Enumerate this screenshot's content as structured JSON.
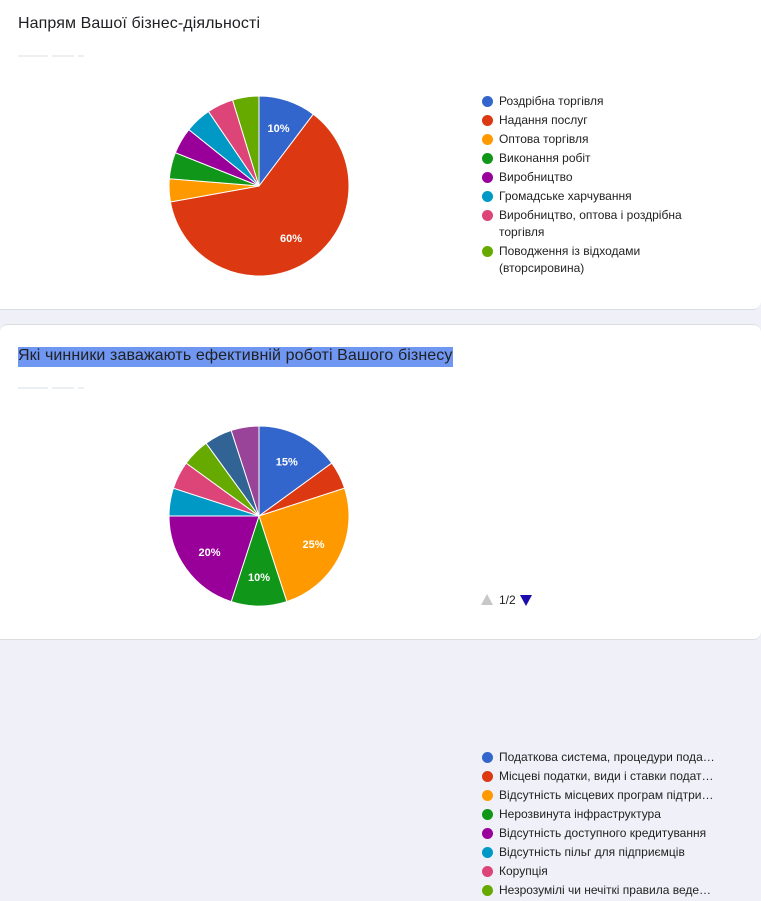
{
  "chart_data": [
    {
      "type": "pie",
      "title": "Напрям Вашої бізнес-діяльності",
      "legend_position": "right",
      "slices": [
        {
          "label": "Роздрібна торгівля",
          "value": 10,
          "color": "#3366cc",
          "value_label": "10%"
        },
        {
          "label": "Надання послуг",
          "value": 60,
          "color": "#dc3912",
          "value_label": "60%"
        },
        {
          "label": "Оптова торгівля",
          "value": 4,
          "color": "#ff9900",
          "value_label": ""
        },
        {
          "label": "Виконання робіт",
          "value": 4.6,
          "color": "#109618",
          "value_label": ""
        },
        {
          "label": "Виробництво",
          "value": 4.6,
          "color": "#990099",
          "value_label": ""
        },
        {
          "label": "Громадське харчування",
          "value": 4.6,
          "color": "#0099c6",
          "value_label": ""
        },
        {
          "label": "Виробництво, оптова і роздрібна торгівля",
          "value": 4.6,
          "color": "#dd4477",
          "value_label": ""
        },
        {
          "label": "Поводження із відходами (вторсировина)",
          "value": 4.6,
          "color": "#66aa00",
          "value_label": ""
        }
      ]
    },
    {
      "type": "pie",
      "title": "Які чинники заважають ефективній роботі Вашого бізнесу",
      "legend_position": "right",
      "slices": [
        {
          "label": "Податкова система, процедури пода…",
          "value": 15,
          "color": "#3366cc",
          "value_label": "15%"
        },
        {
          "label": "Місцеві податки, види і ставки подат…",
          "value": 5,
          "color": "#dc3912",
          "value_label": ""
        },
        {
          "label": "Відсутність місцевих програм підтри…",
          "value": 25,
          "color": "#ff9900",
          "value_label": "25%"
        },
        {
          "label": "Нерозвинута інфраструктура",
          "value": 10,
          "color": "#109618",
          "value_label": "10%"
        },
        {
          "label": "Відсутність доступного кредитування",
          "value": 20,
          "color": "#990099",
          "value_label": "20%"
        },
        {
          "label": "Відсутність пільг для підприємців",
          "value": 5,
          "color": "#0099c6",
          "value_label": ""
        },
        {
          "label": "Корупція",
          "value": 5,
          "color": "#dd4477",
          "value_label": ""
        },
        {
          "label": "Незрозумілі чи нечіткі правила веде…",
          "value": 5,
          "color": "#66aa00",
          "value_label": ""
        },
        {
          "label": "",
          "value": 5,
          "color": "#316395",
          "value_label": ""
        },
        {
          "label": "",
          "value": 5,
          "color": "#994499",
          "value_label": ""
        }
      ]
    }
  ],
  "pager": {
    "text": "1/2"
  }
}
